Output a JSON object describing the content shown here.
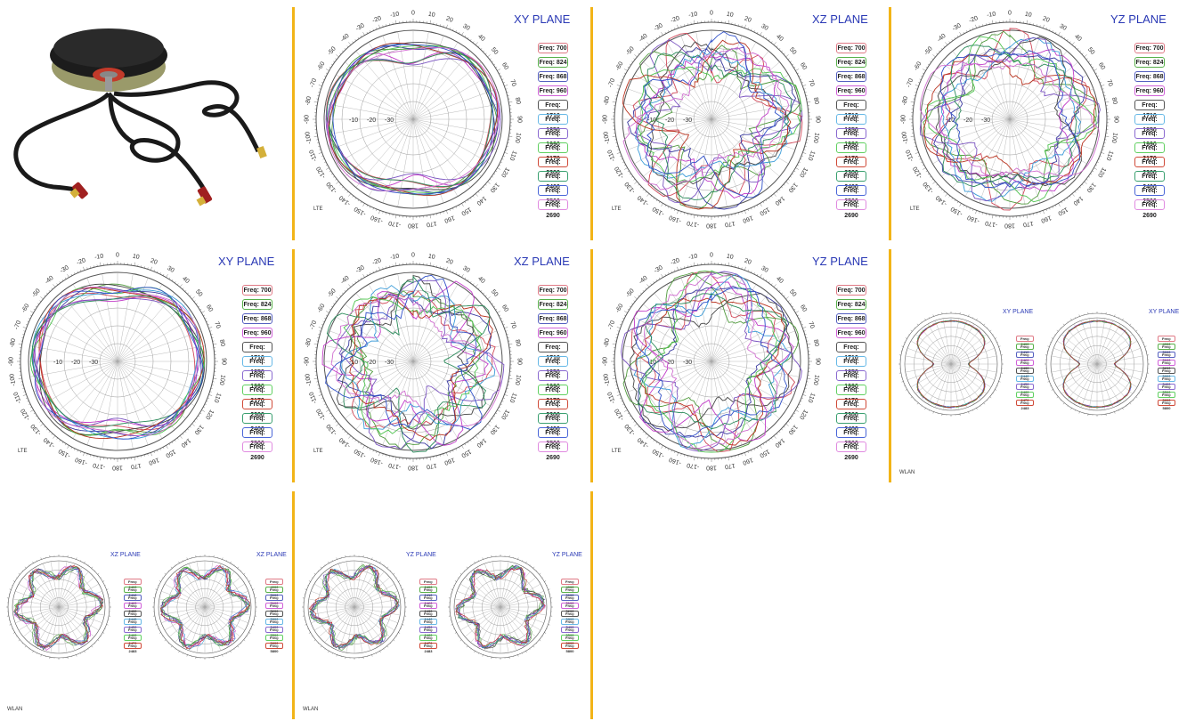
{
  "colors": {
    "separator": "#f2b417",
    "title": "#2a39b5",
    "traces": [
      "#d04a5a",
      "#4f9a3c",
      "#3a3aa0",
      "#c23cc8",
      "#444444",
      "#3a9bd8",
      "#7a53c0",
      "#4fc34f",
      "#b8321e",
      "#2a8a5a",
      "#3050c8",
      "#d070d0"
    ],
    "legend_borders": [
      "#e07a86",
      "#58b04a",
      "#5560c0",
      "#d060d8",
      "#555555",
      "#66b8e6",
      "#8a6ad0",
      "#60d060",
      "#d04a38",
      "#3aa070",
      "#4a66d8",
      "#e08ae0"
    ]
  },
  "lte_legend": [
    "Freq: 700",
    "Freq: 824",
    "Freq: 868",
    "Freq: 960",
    "Freq: 1710",
    "Freq: 1850",
    "Freq: 1990",
    "Freq: 2170",
    "Freq: 2300",
    "Freq: 2400",
    "Freq: 2500",
    "Freq: 2690"
  ],
  "wlan_legend_24": [
    "Freq: 2400",
    "Freq: 2410",
    "Freq: 2420",
    "Freq: 2430",
    "Freq: 2440",
    "Freq: 2450",
    "Freq: 2460",
    "Freq: 2470",
    "Freq: 2483"
  ],
  "wlan_legend_5": [
    "Freq: 4900",
    "Freq: 5000",
    "Freq: 5100",
    "Freq: 5200",
    "Freq: 5300",
    "Freq: 5400",
    "Freq: 5500",
    "Freq: 5600",
    "Freq: 5800"
  ],
  "plots": [
    {
      "title": "XY PLANE",
      "tech": "LTE"
    },
    {
      "title": "XZ PLANE",
      "tech": "LTE"
    },
    {
      "title": "YZ PLANE",
      "tech": "LTE"
    },
    {
      "title": "XY PLANE",
      "tech": "LTE"
    },
    {
      "title": "XZ PLANE",
      "tech": "LTE"
    },
    {
      "title": "YZ PLANE",
      "tech": "LTE"
    },
    {
      "title": "XY PLANE",
      "tech": "WLAN"
    },
    {
      "title": "XZ PLANE",
      "tech": "WLAN"
    },
    {
      "title": "YZ PLANE",
      "tech": "WLAN"
    }
  ],
  "ring_labels": [
    "-10",
    "-20",
    "-30"
  ],
  "angle_labels": [
    "0",
    "10",
    "20",
    "30",
    "40",
    "50",
    "60",
    "70",
    "80",
    "90",
    "100",
    "110",
    "120",
    "130",
    "140",
    "150",
    "160",
    "170",
    "180",
    "-170",
    "-160",
    "-150",
    "-140",
    "-130",
    "-120",
    "-110",
    "-100",
    "-90",
    "-80",
    "-70",
    "-60",
    "-50",
    "-40",
    "-30",
    "-20",
    "-10"
  ],
  "chart_data": [
    {
      "type": "scatter",
      "coordinate_system": "polar",
      "title": "XY PLANE",
      "technology": "LTE",
      "angle_unit": "deg",
      "radius_unit": "dB",
      "radial_ticks": [
        -10,
        -20,
        -30
      ],
      "series": [
        {
          "name": "Freq: 700"
        },
        {
          "name": "Freq: 824"
        },
        {
          "name": "Freq: 868"
        },
        {
          "name": "Freq: 960"
        },
        {
          "name": "Freq: 1710"
        },
        {
          "name": "Freq: 1850"
        },
        {
          "name": "Freq: 1990"
        },
        {
          "name": "Freq: 2170"
        },
        {
          "name": "Freq: 2300"
        },
        {
          "name": "Freq: 2400"
        },
        {
          "name": "Freq: 2500"
        },
        {
          "name": "Freq: 2690"
        }
      ]
    },
    {
      "type": "scatter",
      "coordinate_system": "polar",
      "title": "XZ PLANE",
      "technology": "LTE",
      "radial_ticks": [
        -10,
        -20,
        -30
      ]
    },
    {
      "type": "scatter",
      "coordinate_system": "polar",
      "title": "YZ PLANE",
      "technology": "LTE",
      "radial_ticks": [
        -10,
        -20,
        -30
      ]
    },
    {
      "type": "scatter",
      "coordinate_system": "polar",
      "title": "XY PLANE",
      "technology": "LTE",
      "radial_ticks": [
        -10,
        -20,
        -30
      ]
    },
    {
      "type": "scatter",
      "coordinate_system": "polar",
      "title": "XZ PLANE",
      "technology": "LTE",
      "radial_ticks": [
        -10,
        -20,
        -30
      ]
    },
    {
      "type": "scatter",
      "coordinate_system": "polar",
      "title": "YZ PLANE",
      "technology": "LTE",
      "radial_ticks": [
        -10,
        -20,
        -30
      ]
    },
    {
      "type": "scatter",
      "coordinate_system": "polar",
      "title": "XY PLANE",
      "technology": "WLAN"
    },
    {
      "type": "scatter",
      "coordinate_system": "polar",
      "title": "XZ PLANE",
      "technology": "WLAN"
    },
    {
      "type": "scatter",
      "coordinate_system": "polar",
      "title": "YZ PLANE",
      "technology": "WLAN"
    }
  ]
}
